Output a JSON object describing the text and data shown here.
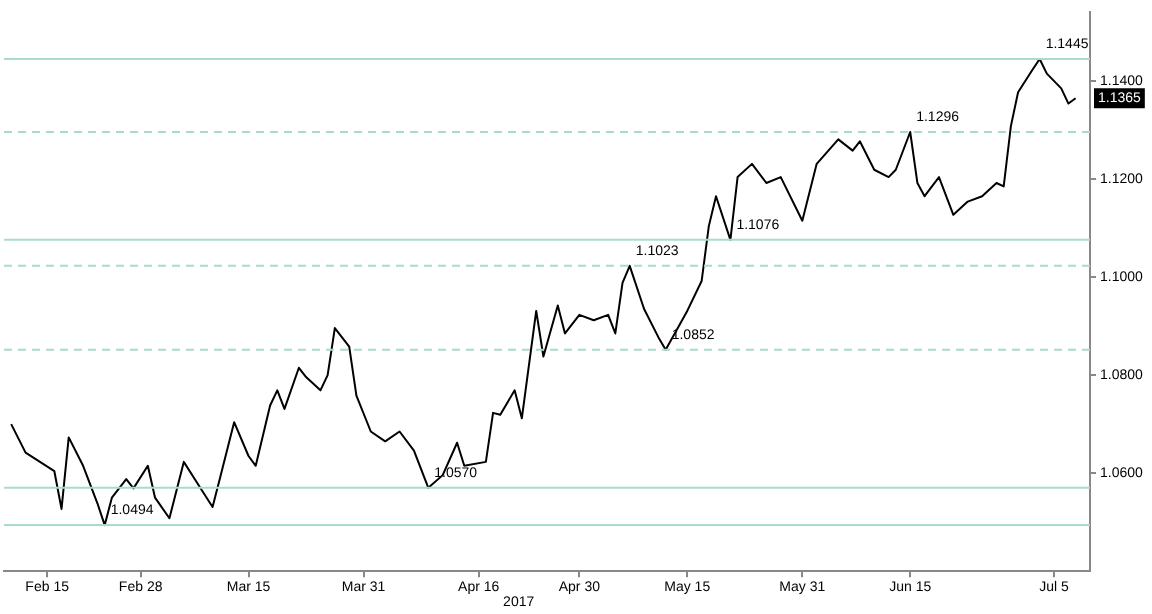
{
  "chart_data": {
    "type": "line",
    "x": [
      "2017-02-10",
      "2017-02-12",
      "2017-02-14",
      "2017-02-16",
      "2017-02-17",
      "2017-02-18",
      "2017-02-20",
      "2017-02-22",
      "2017-02-23",
      "2017-02-24",
      "2017-02-26",
      "2017-02-27",
      "2017-03-01",
      "2017-03-02",
      "2017-03-04",
      "2017-03-06",
      "2017-03-08",
      "2017-03-10",
      "2017-03-11",
      "2017-03-13",
      "2017-03-15",
      "2017-03-16",
      "2017-03-18",
      "2017-03-19",
      "2017-03-20",
      "2017-03-22",
      "2017-03-23",
      "2017-03-25",
      "2017-03-26",
      "2017-03-27",
      "2017-03-29",
      "2017-03-30",
      "2017-04-01",
      "2017-04-03",
      "2017-04-05",
      "2017-04-07",
      "2017-04-09",
      "2017-04-11",
      "2017-04-13",
      "2017-04-14",
      "2017-04-17",
      "2017-04-18",
      "2017-04-19",
      "2017-04-21",
      "2017-04-22",
      "2017-04-24",
      "2017-04-25",
      "2017-04-27",
      "2017-04-28",
      "2017-04-30",
      "2017-05-02",
      "2017-05-04",
      "2017-05-05",
      "2017-05-06",
      "2017-05-07",
      "2017-05-09",
      "2017-05-11",
      "2017-05-12",
      "2017-05-15",
      "2017-05-17",
      "2017-05-18",
      "2017-05-19",
      "2017-05-21",
      "2017-05-22",
      "2017-05-24",
      "2017-05-26",
      "2017-05-28",
      "2017-05-31",
      "2017-06-02",
      "2017-06-05",
      "2017-06-07",
      "2017-06-08",
      "2017-06-10",
      "2017-06-12",
      "2017-06-13",
      "2017-06-15",
      "2017-06-16",
      "2017-06-17",
      "2017-06-19",
      "2017-06-21",
      "2017-06-23",
      "2017-06-25",
      "2017-06-27",
      "2017-06-28",
      "2017-06-29",
      "2017-06-30",
      "2017-07-02",
      "2017-07-03",
      "2017-07-04",
      "2017-07-06",
      "2017-07-07",
      "2017-07-08"
    ],
    "series": [
      {
        "color": "#000000",
        "values": [
          1.07,
          1.0642,
          1.0623,
          1.0604,
          1.0527,
          1.0673,
          1.0615,
          1.0538,
          1.0494,
          1.055,
          1.0588,
          1.0569,
          1.0615,
          1.055,
          1.0508,
          1.0623,
          1.0577,
          1.0531,
          1.0588,
          1.0704,
          1.0635,
          1.0615,
          1.0738,
          1.0769,
          1.0731,
          1.0815,
          1.0796,
          1.0769,
          1.08,
          1.0896,
          1.0858,
          1.0758,
          1.0685,
          1.0665,
          1.0685,
          1.0646,
          1.057,
          1.0596,
          1.0662,
          1.0615,
          1.0623,
          1.0723,
          1.0719,
          1.0769,
          1.0712,
          1.0931,
          1.0838,
          1.0942,
          1.0885,
          1.0923,
          1.0912,
          1.0923,
          1.0885,
          1.0988,
          1.1023,
          1.0935,
          1.0877,
          1.0852,
          1.0931,
          1.0992,
          1.1104,
          1.1165,
          1.1076,
          1.1204,
          1.1231,
          1.1192,
          1.1204,
          1.1115,
          1.1231,
          1.1281,
          1.1258,
          1.1277,
          1.1219,
          1.1204,
          1.1219,
          1.1296,
          1.1192,
          1.1165,
          1.1204,
          1.1127,
          1.1154,
          1.1165,
          1.1192,
          1.1185,
          1.1308,
          1.1377,
          1.1423,
          1.1445,
          1.1415,
          1.1385,
          1.1354,
          1.1365
        ]
      }
    ],
    "xlim": [
      "2017-02-09",
      "2017-07-10"
    ],
    "xticks": [
      {
        "value": "2017-02-15",
        "label": "Feb 15"
      },
      {
        "value": "2017-02-28",
        "label": "Feb 28"
      },
      {
        "value": "2017-03-15",
        "label": "Mar 15"
      },
      {
        "value": "2017-03-31",
        "label": "Mar 31"
      },
      {
        "value": "2017-04-16",
        "label": "Apr 16"
      },
      {
        "value": "2017-04-30",
        "label": "Apr 30"
      },
      {
        "value": "2017-05-15",
        "label": "May 15"
      },
      {
        "value": "2017-05-31",
        "label": "May 31"
      },
      {
        "value": "2017-06-15",
        "label": "Jun 15"
      },
      {
        "value": "2017-07-05",
        "label": "Jul 5"
      }
    ],
    "ylim": [
      1.04,
      1.154
    ],
    "yticks": [
      {
        "value": 1.06,
        "label": "1.0600"
      },
      {
        "value": 1.08,
        "label": "1.0800"
      },
      {
        "value": 1.1,
        "label": "1.1000"
      },
      {
        "value": 1.12,
        "label": "1.1200"
      },
      {
        "value": 1.14,
        "label": "1.1400"
      }
    ],
    "ref_lines": [
      {
        "axis": "y",
        "value": 1.0494,
        "color": "#a8dcc8",
        "line_style": "solid"
      },
      {
        "axis": "y",
        "value": 1.057,
        "color": "#a8dcc8",
        "line_style": "solid"
      },
      {
        "axis": "y",
        "value": 1.0852,
        "color": "#a8dcc8",
        "line_style": "dashed"
      },
      {
        "axis": "y",
        "value": 1.1023,
        "color": "#a8dcc8",
        "line_style": "dashed"
      },
      {
        "axis": "y",
        "value": 1.1076,
        "color": "#a8dcc8",
        "line_style": "solid"
      },
      {
        "axis": "y",
        "value": 1.1296,
        "color": "#a8dcc8",
        "line_style": "dashed"
      },
      {
        "axis": "y",
        "value": 1.1445,
        "color": "#a8dcc8",
        "line_style": "solid"
      }
    ],
    "annotations": [
      {
        "text": "1.0494",
        "x": "2017-02-23",
        "y": 1.0494
      },
      {
        "text": "1.0570",
        "x": "2017-04-09",
        "y": 1.057
      },
      {
        "text": "1.0852",
        "x": "2017-05-12",
        "y": 1.0852
      },
      {
        "text": "1.1023",
        "x": "2017-05-07",
        "y": 1.1023
      },
      {
        "text": "1.1076",
        "x": "2017-05-21",
        "y": 1.1076
      },
      {
        "text": "1.1296",
        "x": "2017-06-15",
        "y": 1.1296
      },
      {
        "text": "1.1445",
        "x": "2017-07-03",
        "y": 1.1445
      },
      {
        "text": "1.1365",
        "x": "2017-07-08",
        "y": 1.1365
      },
      "2017"
    ]
  }
}
